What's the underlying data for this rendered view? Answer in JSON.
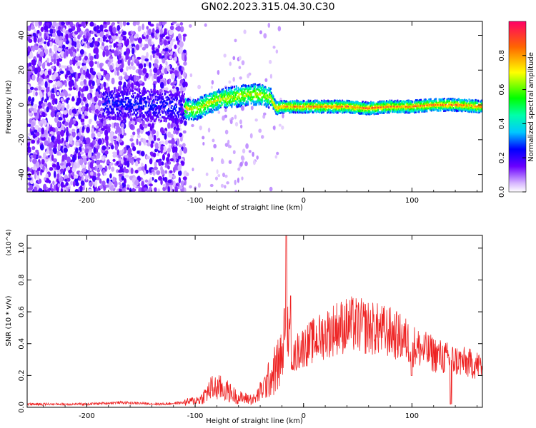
{
  "title": "GN02.2023.315.04.30.C30",
  "chart_data": [
    {
      "type": "heatmap",
      "xlabel": "Height of straight line (km)",
      "ylabel": "Frequency (Hz)",
      "xlim": [
        -255,
        165
      ],
      "ylim": [
        -50,
        48
      ],
      "xticks": [
        -200,
        -100,
        0,
        100
      ],
      "xtick_labels": [
        "-200",
        "-100",
        "0",
        "100"
      ],
      "yticks": [
        -40,
        -20,
        0,
        20,
        40
      ],
      "ytick_labels": [
        "-40",
        "-20",
        "0",
        "20",
        "40"
      ],
      "colorbar": {
        "label": "Normalized spectral amplitude",
        "range": [
          0,
          1
        ],
        "ticks": [
          0.0,
          0.2,
          0.4,
          0.6,
          0.8
        ],
        "tick_labels": [
          "0.0",
          "0.2",
          "0.4",
          "0.6",
          "0.8"
        ]
      },
      "ridge": {
        "x": [
          -180,
          -150,
          -120,
          -100,
          -80,
          -60,
          -50,
          -40,
          -30,
          -25,
          -20,
          0,
          20,
          40,
          60,
          80,
          100,
          120,
          140,
          165
        ],
        "y": [
          1,
          0,
          -1,
          -3,
          3,
          5,
          6,
          6,
          4,
          -2,
          -1,
          -1,
          -1,
          -1,
          -2,
          -1,
          -1,
          0,
          0,
          -1
        ]
      }
    },
    {
      "type": "line",
      "xlabel": "Height of straight line (km)",
      "ylabel": "SNR (10 * v/v)",
      "y_multiplier": "(x10^4)",
      "xlim": [
        -255,
        165
      ],
      "ylim": [
        0,
        1.08
      ],
      "xticks": [
        -200,
        -100,
        0,
        100
      ],
      "xtick_labels": [
        "-200",
        "-100",
        "0",
        "100"
      ],
      "yticks": [
        0.0,
        0.2,
        0.4,
        0.6,
        0.8,
        1.0
      ],
      "ytick_labels": [
        "0.0",
        "0.2",
        "0.4",
        "0.6",
        "0.8",
        "1.0"
      ],
      "line_color": "#ee2222",
      "envelope": {
        "x": [
          -255,
          -200,
          -170,
          -130,
          -110,
          -95,
          -85,
          -75,
          -60,
          -45,
          -35,
          -25,
          -18,
          -15,
          -12,
          -9,
          -5,
          0,
          10,
          30,
          45,
          60,
          80,
          95,
          100,
          110,
          130,
          150,
          165
        ],
        "y": [
          0.02,
          0.02,
          0.03,
          0.02,
          0.03,
          0.05,
          0.12,
          0.12,
          0.06,
          0.05,
          0.14,
          0.25,
          0.32,
          0.5,
          0.38,
          0.3,
          0.36,
          0.38,
          0.42,
          0.5,
          0.52,
          0.5,
          0.47,
          0.42,
          0.39,
          0.36,
          0.31,
          0.28,
          0.26
        ]
      },
      "peaks": [
        {
          "x": -16,
          "y": 1.08
        },
        {
          "x": -12,
          "y": 0.7
        },
        {
          "x": -18,
          "y": 0.62
        }
      ]
    }
  ]
}
